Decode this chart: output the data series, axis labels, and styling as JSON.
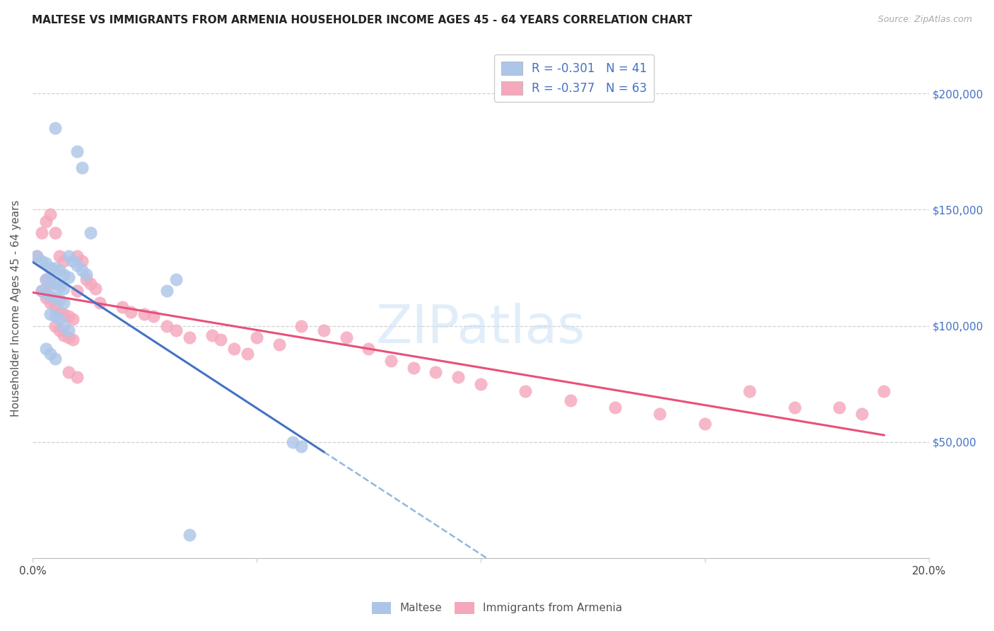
{
  "title": "MALTESE VS IMMIGRANTS FROM ARMENIA HOUSEHOLDER INCOME AGES 45 - 64 YEARS CORRELATION CHART",
  "source": "Source: ZipAtlas.com",
  "ylabel": "Householder Income Ages 45 - 64 years",
  "xlim": [
    0.0,
    0.2
  ],
  "ylim": [
    0,
    215000
  ],
  "ytick_right_labels": [
    "$50,000",
    "$100,000",
    "$150,000",
    "$200,000"
  ],
  "ytick_right_vals": [
    50000,
    100000,
    150000,
    200000
  ],
  "xtick_vals": [
    0.0,
    0.05,
    0.1,
    0.15,
    0.2
  ],
  "xtick_labels": [
    "0.0%",
    "",
    "",
    "",
    "20.0%"
  ],
  "legend_r1": "-0.301",
  "legend_n1": "41",
  "legend_r2": "-0.377",
  "legend_n2": "63",
  "blue_fill": "#adc6e8",
  "pink_fill": "#f5a8bc",
  "line_blue": "#4472c4",
  "line_pink": "#e8507a",
  "dash_color": "#90b8e0",
  "grid_color": "#d0d0d0",
  "title_color": "#222222",
  "source_color": "#aaaaaa",
  "ytick_color": "#4472c4",
  "ylabel_color": "#555555",
  "watermark_color": "#cde3f5",
  "scatter_size": 170,
  "scatter_alpha": 0.82,
  "bottom_label_1": "Maltese",
  "bottom_label_2": "Immigrants from Armenia",
  "blue_x": [
    0.005,
    0.01,
    0.011,
    0.001,
    0.002,
    0.003,
    0.004,
    0.005,
    0.006,
    0.007,
    0.008,
    0.003,
    0.004,
    0.005,
    0.006,
    0.007,
    0.002,
    0.003,
    0.004,
    0.005,
    0.006,
    0.007,
    0.008,
    0.009,
    0.01,
    0.011,
    0.012,
    0.013,
    0.004,
    0.005,
    0.006,
    0.007,
    0.008,
    0.003,
    0.004,
    0.005,
    0.03,
    0.032,
    0.058,
    0.06,
    0.035
  ],
  "blue_y": [
    185000,
    175000,
    168000,
    130000,
    128000,
    127000,
    125000,
    125000,
    124000,
    122000,
    121000,
    120000,
    119000,
    118000,
    117000,
    116000,
    115000,
    114000,
    113000,
    112000,
    111000,
    110000,
    130000,
    128000,
    126000,
    124000,
    122000,
    140000,
    105000,
    104000,
    103000,
    100000,
    98000,
    90000,
    88000,
    86000,
    115000,
    120000,
    50000,
    48000,
    10000
  ],
  "pink_x": [
    0.001,
    0.002,
    0.003,
    0.004,
    0.003,
    0.004,
    0.005,
    0.006,
    0.007,
    0.002,
    0.003,
    0.004,
    0.005,
    0.006,
    0.007,
    0.008,
    0.009,
    0.01,
    0.005,
    0.006,
    0.007,
    0.008,
    0.009,
    0.01,
    0.011,
    0.012,
    0.013,
    0.014,
    0.015,
    0.02,
    0.022,
    0.025,
    0.027,
    0.03,
    0.032,
    0.035,
    0.04,
    0.042,
    0.045,
    0.048,
    0.05,
    0.055,
    0.06,
    0.065,
    0.07,
    0.075,
    0.08,
    0.085,
    0.09,
    0.095,
    0.1,
    0.11,
    0.12,
    0.13,
    0.14,
    0.15,
    0.16,
    0.17,
    0.18,
    0.185,
    0.19,
    0.008,
    0.01
  ],
  "pink_y": [
    130000,
    140000,
    145000,
    148000,
    120000,
    118000,
    140000,
    130000,
    128000,
    115000,
    112000,
    110000,
    108000,
    106000,
    105000,
    104000,
    103000,
    115000,
    100000,
    98000,
    96000,
    95000,
    94000,
    130000,
    128000,
    120000,
    118000,
    116000,
    110000,
    108000,
    106000,
    105000,
    104000,
    100000,
    98000,
    95000,
    96000,
    94000,
    90000,
    88000,
    95000,
    92000,
    100000,
    98000,
    95000,
    90000,
    85000,
    82000,
    80000,
    78000,
    75000,
    72000,
    68000,
    65000,
    62000,
    58000,
    72000,
    65000,
    65000,
    62000,
    72000,
    80000,
    78000
  ]
}
